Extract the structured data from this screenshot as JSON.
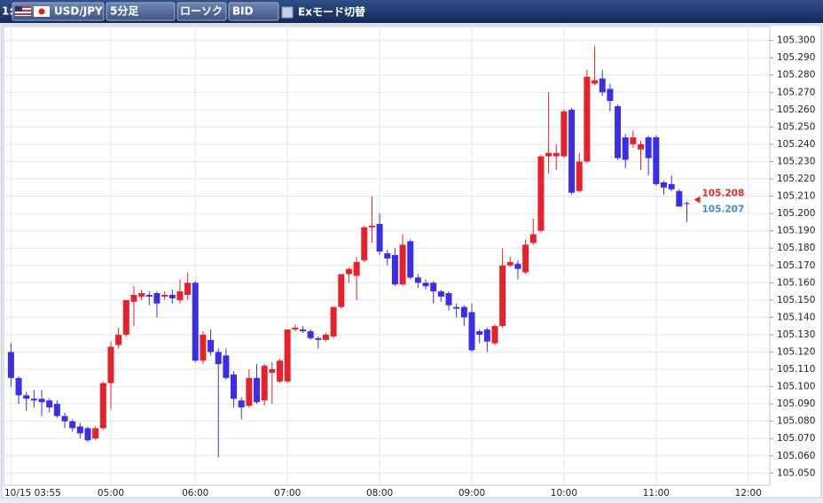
{
  "toolbar": {
    "window": "1:",
    "symbol": "USD/JPY",
    "timeframe": "5分足",
    "chart_style": "ローソク",
    "price_side": "BID",
    "ex_mode": "Exモード切替"
  },
  "chart_data": {
    "type": "candlestick",
    "categories": [
      "10/15 03:55",
      null,
      null,
      null,
      null,
      null,
      null,
      null,
      null,
      null,
      null,
      null,
      null,
      "05:00",
      null,
      null,
      null,
      null,
      null,
      null,
      null,
      null,
      null,
      null,
      "06:00",
      null,
      null,
      null,
      null,
      null,
      null,
      null,
      null,
      null,
      null,
      null,
      "07:00",
      null,
      null,
      null,
      null,
      null,
      null,
      null,
      null,
      null,
      null,
      null,
      "08:00",
      null,
      null,
      null,
      null,
      null,
      null,
      null,
      null,
      null,
      null,
      null,
      "09:00",
      null,
      null,
      null,
      null,
      null,
      null,
      null,
      null,
      null,
      null,
      null,
      "10:00",
      null,
      null,
      null,
      null,
      null,
      null,
      null,
      null,
      null,
      null,
      null,
      "11:00",
      null,
      null,
      null,
      null,
      null,
      null,
      null,
      null,
      null,
      null,
      null,
      "12:00"
    ],
    "open": [
      105.12,
      105.105,
      105.095,
      105.093,
      105.093,
      105.092,
      105.09,
      105.083,
      105.08,
      105.077,
      105.076,
      105.07,
      105.076,
      105.102,
      105.124,
      105.13,
      105.149,
      105.152,
      105.153,
      105.154,
      105.152,
      105.153,
      105.15,
      105.153,
      105.16,
      105.115,
      105.127,
      105.12,
      105.118,
      105.107,
      105.092,
      105.089,
      105.105,
      105.092,
      105.108,
      105.103,
      105.103,
      105.133,
      105.133,
      105.132,
      105.128,
      105.127,
      105.129,
      105.146,
      105.165,
      105.164,
      105.173,
      105.192,
      105.194,
      105.177,
      105.176,
      105.159,
      105.184,
      105.163,
      105.16,
      105.16,
      105.155,
      105.154,
      105.146,
      105.146,
      105.143,
      105.132,
      105.133,
      105.125,
      105.135,
      105.17,
      105.171,
      105.166,
      105.183,
      105.19,
      105.233,
      105.233,
      105.233,
      105.26,
      105.213,
      105.23,
      105.275,
      105.278,
      105.272,
      105.262,
      105.244,
      105.24,
      105.237,
      105.244,
      105.244,
      105.218,
      105.217,
      105.213,
      105.206,
      null,
      null,
      null,
      null,
      null,
      null,
      null,
      null
    ],
    "high": [
      105.125,
      105.106,
      105.097,
      105.098,
      105.098,
      105.093,
      105.092,
      105.085,
      105.081,
      105.079,
      105.077,
      105.077,
      105.103,
      105.126,
      105.134,
      105.15,
      105.158,
      105.156,
      105.155,
      105.155,
      105.155,
      105.156,
      105.162,
      105.166,
      105.161,
      105.132,
      105.133,
      105.122,
      105.122,
      105.109,
      105.094,
      105.11,
      105.113,
      105.113,
      105.114,
      105.116,
      105.133,
      105.136,
      105.135,
      105.133,
      105.129,
      105.131,
      105.146,
      105.165,
      105.169,
      105.175,
      105.193,
      105.21,
      105.2,
      105.179,
      105.18,
      105.188,
      105.185,
      105.165,
      105.162,
      105.161,
      105.156,
      105.155,
      105.148,
      105.147,
      105.148,
      105.133,
      105.134,
      105.136,
      105.18,
      105.175,
      105.173,
      105.185,
      105.197,
      105.234,
      105.27,
      105.24,
      105.26,
      105.261,
      105.235,
      105.283,
      105.297,
      105.283,
      105.275,
      105.263,
      105.246,
      105.248,
      105.242,
      105.245,
      105.245,
      105.219,
      105.222,
      105.214,
      105.207,
      null,
      null,
      null,
      null,
      null,
      null,
      null,
      null
    ],
    "low": [
      105.1,
      105.09,
      105.086,
      105.088,
      105.083,
      105.085,
      105.082,
      105.076,
      105.074,
      105.07,
      105.068,
      105.069,
      105.075,
      105.087,
      105.122,
      105.129,
      105.135,
      105.15,
      105.147,
      105.14,
      105.15,
      105.148,
      105.148,
      105.15,
      105.114,
      105.113,
      105.118,
      105.059,
      105.104,
      105.088,
      105.081,
      105.088,
      105.09,
      105.089,
      105.09,
      105.102,
      105.102,
      105.132,
      105.131,
      105.127,
      105.122,
      105.126,
      105.128,
      105.145,
      105.16,
      105.15,
      105.172,
      105.183,
      105.176,
      105.17,
      105.158,
      105.158,
      105.162,
      105.157,
      105.156,
      105.148,
      105.149,
      105.144,
      105.14,
      105.135,
      105.12,
      105.125,
      105.12,
      105.124,
      105.134,
      105.169,
      105.162,
      105.165,
      105.182,
      105.189,
      105.223,
      105.225,
      105.232,
      105.211,
      105.212,
      105.229,
      105.274,
      105.268,
      105.259,
      105.231,
      105.226,
      105.238,
      105.225,
      105.222,
      105.216,
      105.211,
      105.213,
      105.204,
      105.195,
      null,
      null,
      null,
      null,
      null,
      null,
      null,
      null
    ],
    "close": [
      105.105,
      105.095,
      105.093,
      105.092,
      105.091,
      105.088,
      105.083,
      105.08,
      105.076,
      105.073,
      105.069,
      105.076,
      105.102,
      105.123,
      105.13,
      105.15,
      105.153,
      105.154,
      105.152,
      105.148,
      105.153,
      105.151,
      105.155,
      105.16,
      105.115,
      105.13,
      105.12,
      105.113,
      105.105,
      105.093,
      105.088,
      105.105,
      105.091,
      105.112,
      105.11,
      105.115,
      105.133,
      105.134,
      105.132,
      105.128,
      105.127,
      105.13,
      105.146,
      105.165,
      105.168,
      105.172,
      105.192,
      105.193,
      105.178,
      105.174,
      105.159,
      105.182,
      105.163,
      105.16,
      105.158,
      105.155,
      105.152,
      105.147,
      105.145,
      105.14,
      105.121,
      105.13,
      105.126,
      105.135,
      105.17,
      105.172,
      105.168,
      105.182,
      105.188,
      105.233,
      105.235,
      105.235,
      105.259,
      105.212,
      105.23,
      105.279,
      105.277,
      105.27,
      105.265,
      105.232,
      105.231,
      105.244,
      105.24,
      105.232,
      105.217,
      105.215,
      105.214,
      105.204,
      105.206,
      null,
      null,
      null,
      null,
      null,
      null,
      null,
      null
    ],
    "up_color": "#e8202a",
    "down_color": "#3a2fe6",
    "ylim": [
      105.043,
      105.308
    ],
    "yticks": [
      {
        "value": 105.05,
        "label": "105.050"
      },
      {
        "value": 105.06,
        "label": "105.060"
      },
      {
        "value": 105.07,
        "label": "105.070"
      },
      {
        "value": 105.08,
        "label": "105.080"
      },
      {
        "value": 105.09,
        "label": "105.090"
      },
      {
        "value": 105.1,
        "label": "105.100"
      },
      {
        "value": 105.11,
        "label": "105.110"
      },
      {
        "value": 105.12,
        "label": "105.120"
      },
      {
        "value": 105.13,
        "label": "105.130"
      },
      {
        "value": 105.14,
        "label": "105.140"
      },
      {
        "value": 105.15,
        "label": "105.150"
      },
      {
        "value": 105.16,
        "label": "105.160"
      },
      {
        "value": 105.17,
        "label": "105.170"
      },
      {
        "value": 105.18,
        "label": "105.180"
      },
      {
        "value": 105.19,
        "label": "105.190"
      },
      {
        "value": 105.2,
        "label": "105.200"
      },
      {
        "value": 105.21,
        "label": "105.210"
      },
      {
        "value": 105.22,
        "label": "105.220"
      },
      {
        "value": 105.23,
        "label": "105.230"
      },
      {
        "value": 105.24,
        "label": "105.240"
      },
      {
        "value": 105.25,
        "label": "105.250"
      },
      {
        "value": 105.26,
        "label": "105.260"
      },
      {
        "value": 105.27,
        "label": "105.270"
      },
      {
        "value": 105.28,
        "label": "105.280"
      },
      {
        "value": 105.29,
        "label": "105.290"
      },
      {
        "value": 105.3,
        "label": "105.300"
      }
    ],
    "grid": true,
    "price_labels": [
      {
        "value": 105.208,
        "color": "#e02828"
      },
      {
        "value": 105.207,
        "color": "#3a8fc8"
      }
    ]
  }
}
